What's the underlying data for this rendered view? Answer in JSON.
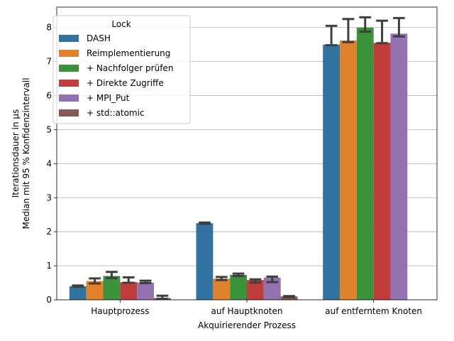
{
  "chart_data": {
    "type": "bar",
    "title": "",
    "xlabel": "Akquirierender Prozess",
    "ylabel_line1": "Iterationsdauer in µs",
    "ylabel_line2": "Median mit 95 % Konfidenzintervall",
    "categories": [
      "Hauptprozess",
      "auf Hauptknoten",
      "auf entferntem Knoten"
    ],
    "ylim": [
      0,
      8.6
    ],
    "yticks": [
      0,
      1,
      2,
      3,
      4,
      5,
      6,
      7,
      8
    ],
    "grid": "y",
    "legend": {
      "title": "Lock",
      "placement": "top-left"
    },
    "series": [
      {
        "name": "DASH",
        "color": "#3274a1",
        "values": [
          0.4,
          2.25,
          7.5
        ],
        "ci": [
          [
            0.38,
            0.42
          ],
          [
            2.23,
            2.27
          ],
          [
            7.48,
            8.05
          ]
        ]
      },
      {
        "name": "Reimplementierung",
        "color": "#e1812c",
        "values": [
          0.55,
          0.62,
          7.62
        ],
        "ci": [
          [
            0.48,
            0.63
          ],
          [
            0.58,
            0.67
          ],
          [
            7.57,
            8.25
          ]
        ]
      },
      {
        "name": "+ Nachfolger prüfen",
        "color": "#3a923a",
        "values": [
          0.7,
          0.73,
          8.0
        ],
        "ci": [
          [
            0.64,
            0.82
          ],
          [
            0.7,
            0.77
          ],
          [
            7.88,
            8.3
          ]
        ]
      },
      {
        "name": "+ Direkte Zugriffe",
        "color": "#c03d3e",
        "values": [
          0.52,
          0.58,
          7.55
        ],
        "ci": [
          [
            0.5,
            0.66
          ],
          [
            0.51,
            0.6
          ],
          [
            7.54,
            8.2
          ]
        ]
      },
      {
        "name": "+ MPI_Put",
        "color": "#9372b2",
        "values": [
          0.5,
          0.65,
          7.82
        ],
        "ci": [
          [
            0.49,
            0.56
          ],
          [
            0.52,
            0.68
          ],
          [
            7.74,
            8.28
          ]
        ]
      },
      {
        "name": "+ std::atomic",
        "color": "#845b53",
        "values": [
          0.05,
          0.1,
          null
        ],
        "ci": [
          [
            0.03,
            0.12
          ],
          [
            0.08,
            0.11
          ],
          null
        ]
      }
    ]
  }
}
